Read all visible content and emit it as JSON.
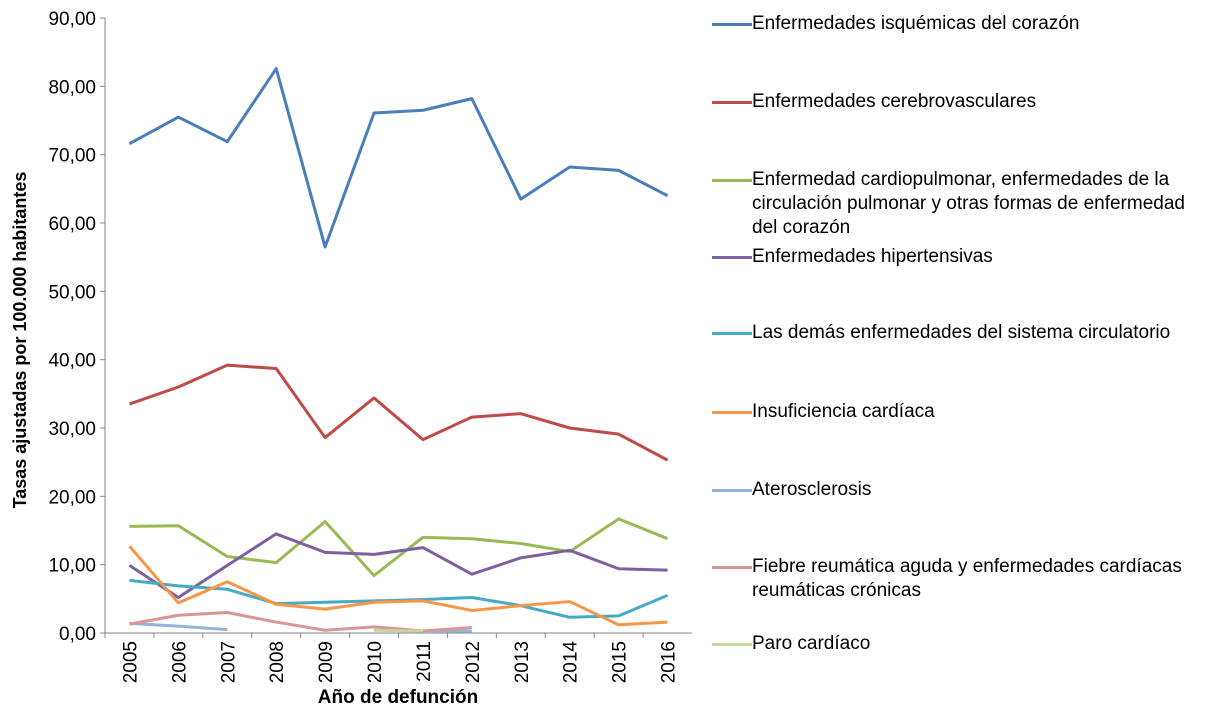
{
  "chart_data": {
    "type": "line",
    "y_label": "Tasas ajustadas por 100.000 habitantes",
    "x_label": "Año de defunción",
    "categories": [
      "2005",
      "2006",
      "2007",
      "2008",
      "2009",
      "2010",
      "2011",
      "2012",
      "2013",
      "2014",
      "2015",
      "2016"
    ],
    "ylim": [
      0,
      90
    ],
    "yticks": [
      {
        "value": 0,
        "label": "0,00"
      },
      {
        "value": 10,
        "label": "10,00"
      },
      {
        "value": 20,
        "label": "20,00"
      },
      {
        "value": 30,
        "label": "30,00"
      },
      {
        "value": 40,
        "label": "40,00"
      },
      {
        "value": 50,
        "label": "50,00"
      },
      {
        "value": 60,
        "label": "60,00"
      },
      {
        "value": 70,
        "label": "70,00"
      },
      {
        "value": 80,
        "label": "80,00"
      },
      {
        "value": 90,
        "label": "90,00"
      }
    ],
    "series": [
      {
        "name": "Enfermedades isquémicas del corazón",
        "color": "#4a7ebb",
        "values": [
          71.6,
          75.5,
          71.9,
          82.6,
          56.5,
          76.1,
          76.5,
          78.2,
          63.5,
          68.2,
          67.7,
          64.0
        ]
      },
      {
        "name": "Enfermedades cerebrovasculares",
        "color": "#be4b48",
        "values": [
          33.5,
          36.0,
          39.2,
          38.7,
          28.6,
          34.4,
          28.3,
          31.6,
          32.1,
          30.0,
          29.1,
          25.3
        ]
      },
      {
        "name": "Enfermedad cardiopulmonar, enfermedades de la circulación pulmonar y otras formas de enfermedad del corazón",
        "color": "#98b954",
        "values": [
          15.6,
          15.7,
          11.2,
          10.3,
          16.3,
          8.4,
          14.0,
          13.8,
          13.1,
          11.9,
          16.7,
          13.8
        ]
      },
      {
        "name": "Enfermedades hipertensivas",
        "color": "#7d60a0",
        "values": [
          9.9,
          5.2,
          9.9,
          14.5,
          11.8,
          11.5,
          12.5,
          8.6,
          11.0,
          12.1,
          9.4,
          9.2
        ]
      },
      {
        "name": "Las demás enfermedades del sistema circulatorio",
        "color": "#46aac5",
        "values": [
          7.7,
          6.9,
          6.4,
          4.3,
          4.5,
          4.7,
          4.9,
          5.2,
          4.0,
          2.3,
          2.5,
          5.5
        ]
      },
      {
        "name": "Insuficiencia cardíaca",
        "color": "#f79646",
        "values": [
          12.7,
          4.4,
          7.5,
          4.2,
          3.5,
          4.5,
          4.7,
          3.3,
          4.0,
          4.6,
          1.2,
          1.6
        ]
      },
      {
        "name": "Aterosclerosis",
        "color": "#95b3d7",
        "values": [
          1.4,
          1.0,
          0.5,
          null,
          null,
          null,
          0.2,
          0.3,
          null,
          null,
          null,
          null
        ]
      },
      {
        "name": "Fiebre reumática aguda y enfermedades cardíacas reumáticas crónicas",
        "color": "#d99694",
        "values": [
          1.3,
          2.6,
          3.0,
          1.6,
          0.4,
          0.9,
          0.3,
          0.8,
          null,
          null,
          null,
          null
        ]
      },
      {
        "name": "Paro cardíaco",
        "color": "#c3d69b",
        "values": [
          null,
          null,
          null,
          null,
          null,
          0.4,
          0.3,
          null,
          null,
          null,
          null,
          null
        ]
      }
    ]
  }
}
